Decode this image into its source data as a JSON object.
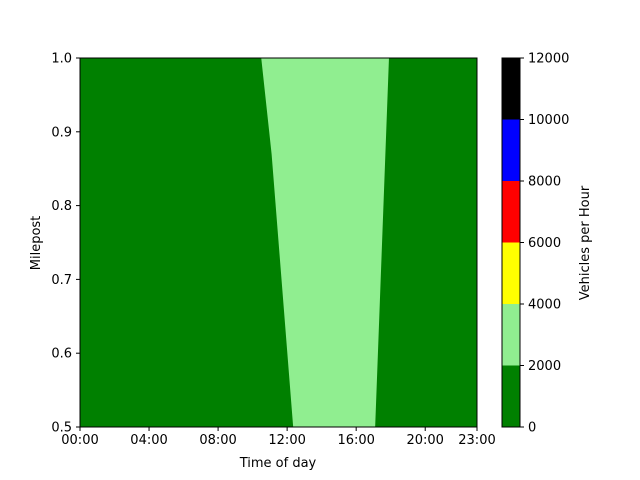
{
  "chart_data": {
    "type": "heatmap",
    "title": "",
    "xlabel": "Time of day",
    "ylabel": "Milepost",
    "x_unit": "hours",
    "xlim": [
      0,
      23
    ],
    "ylim": [
      0.5,
      1.0
    ],
    "x_ticks": [
      {
        "value": 0,
        "label": "00:00"
      },
      {
        "value": 4,
        "label": "04:00"
      },
      {
        "value": 8,
        "label": "08:00"
      },
      {
        "value": 12,
        "label": "12:00"
      },
      {
        "value": 16,
        "label": "16:00"
      },
      {
        "value": 20,
        "label": "20:00"
      },
      {
        "value": 23,
        "label": "23:00"
      }
    ],
    "y_ticks": [
      {
        "value": 0.5,
        "label": "0.5"
      },
      {
        "value": 0.6,
        "label": "0.6"
      },
      {
        "value": 0.7,
        "label": "0.7"
      },
      {
        "value": 0.8,
        "label": "0.8"
      },
      {
        "value": 0.9,
        "label": "0.9"
      },
      {
        "value": 1.0,
        "label": "1.0"
      }
    ],
    "background_band": {
      "value_range": [
        0,
        2000
      ],
      "color": "#008000"
    },
    "regions": [
      {
        "value_range": [
          2000,
          4000
        ],
        "color": "#90EE90",
        "polygon": [
          {
            "x": 10.5,
            "y": 1.0
          },
          {
            "x": 17.9,
            "y": 1.0
          },
          {
            "x": 17.1,
            "y": 0.5
          },
          {
            "x": 12.35,
            "y": 0.5
          },
          {
            "x": 11.1,
            "y": 0.87
          }
        ]
      }
    ],
    "colorbar": {
      "label": "Vehicles per Hour",
      "min": 0,
      "max": 12000,
      "bands": [
        {
          "from": 0,
          "to": 2000,
          "color": "#008000"
        },
        {
          "from": 2000,
          "to": 4000,
          "color": "#90EE90"
        },
        {
          "from": 4000,
          "to": 6000,
          "color": "#FFFF00"
        },
        {
          "from": 6000,
          "to": 8000,
          "color": "#FF0000"
        },
        {
          "from": 8000,
          "to": 10000,
          "color": "#0000FF"
        },
        {
          "from": 10000,
          "to": 12000,
          "color": "#000000"
        }
      ],
      "ticks": [
        {
          "value": 0,
          "label": "0"
        },
        {
          "value": 2000,
          "label": "2000"
        },
        {
          "value": 4000,
          "label": "4000"
        },
        {
          "value": 6000,
          "label": "6000"
        },
        {
          "value": 8000,
          "label": "8000"
        },
        {
          "value": 10000,
          "label": "10000"
        },
        {
          "value": 12000,
          "label": "12000"
        }
      ]
    }
  }
}
